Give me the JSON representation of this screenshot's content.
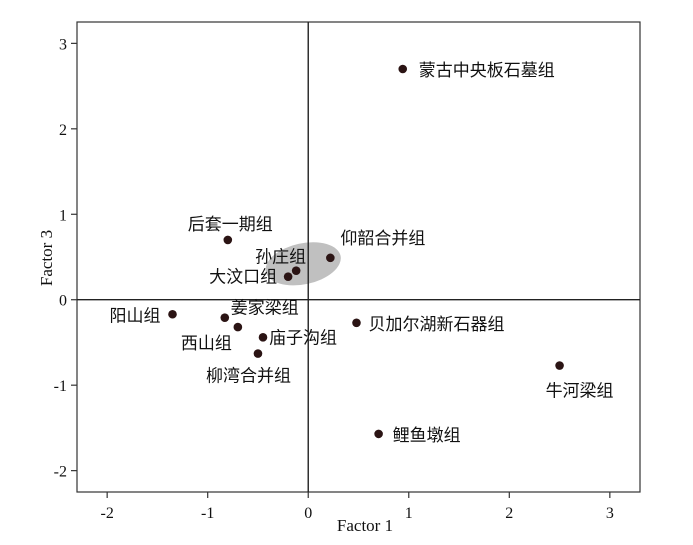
{
  "chart_data": {
    "type": "scatter",
    "title": "",
    "xlabel": "Factor 1",
    "ylabel": "Factor 3",
    "xlim": [
      -2.3,
      3.3
    ],
    "ylim": [
      -2.25,
      3.25
    ],
    "xticks": [
      -2,
      -1,
      0,
      1,
      2,
      3
    ],
    "yticks": [
      -2,
      -1,
      0,
      1,
      2,
      3
    ],
    "xtick_labels": [
      "-2",
      "-1",
      "0",
      "1",
      "2",
      "3"
    ],
    "ytick_labels": [
      "-2",
      "-1",
      "0",
      "1",
      "2",
      "3"
    ],
    "grid": false,
    "reference_lines": {
      "x": 0,
      "y": 0
    },
    "highlight_ellipse": {
      "center": [
        -0.05,
        0.42
      ],
      "radius_x": 0.38,
      "radius_y": 0.24,
      "color": "#c0c0c0"
    },
    "point_color": "#2b1414",
    "points": [
      {
        "label": "蒙古中央板石墓组",
        "x": 0.94,
        "y": 2.7
      },
      {
        "label": "后套一期组",
        "x": -0.8,
        "y": 0.7
      },
      {
        "label": "仰韶合并组",
        "x": 0.22,
        "y": 0.49
      },
      {
        "label": "孙庄组",
        "x": -0.12,
        "y": 0.34
      },
      {
        "label": "大汶口组",
        "x": -0.2,
        "y": 0.27
      },
      {
        "label": "阳山组",
        "x": -1.35,
        "y": -0.17
      },
      {
        "label": "姜家梁组",
        "x": -0.83,
        "y": -0.21
      },
      {
        "label": "西山组",
        "x": -0.7,
        "y": -0.32
      },
      {
        "label": "庙子沟组",
        "x": -0.45,
        "y": -0.44
      },
      {
        "label": "柳湾合并组",
        "x": -0.5,
        "y": -0.63
      },
      {
        "label": "贝加尔湖新石器组",
        "x": 0.48,
        "y": -0.27
      },
      {
        "label": "牛河梁组",
        "x": 2.5,
        "y": -0.77
      },
      {
        "label": "鲤鱼墩组",
        "x": 0.7,
        "y": -1.57
      }
    ]
  }
}
